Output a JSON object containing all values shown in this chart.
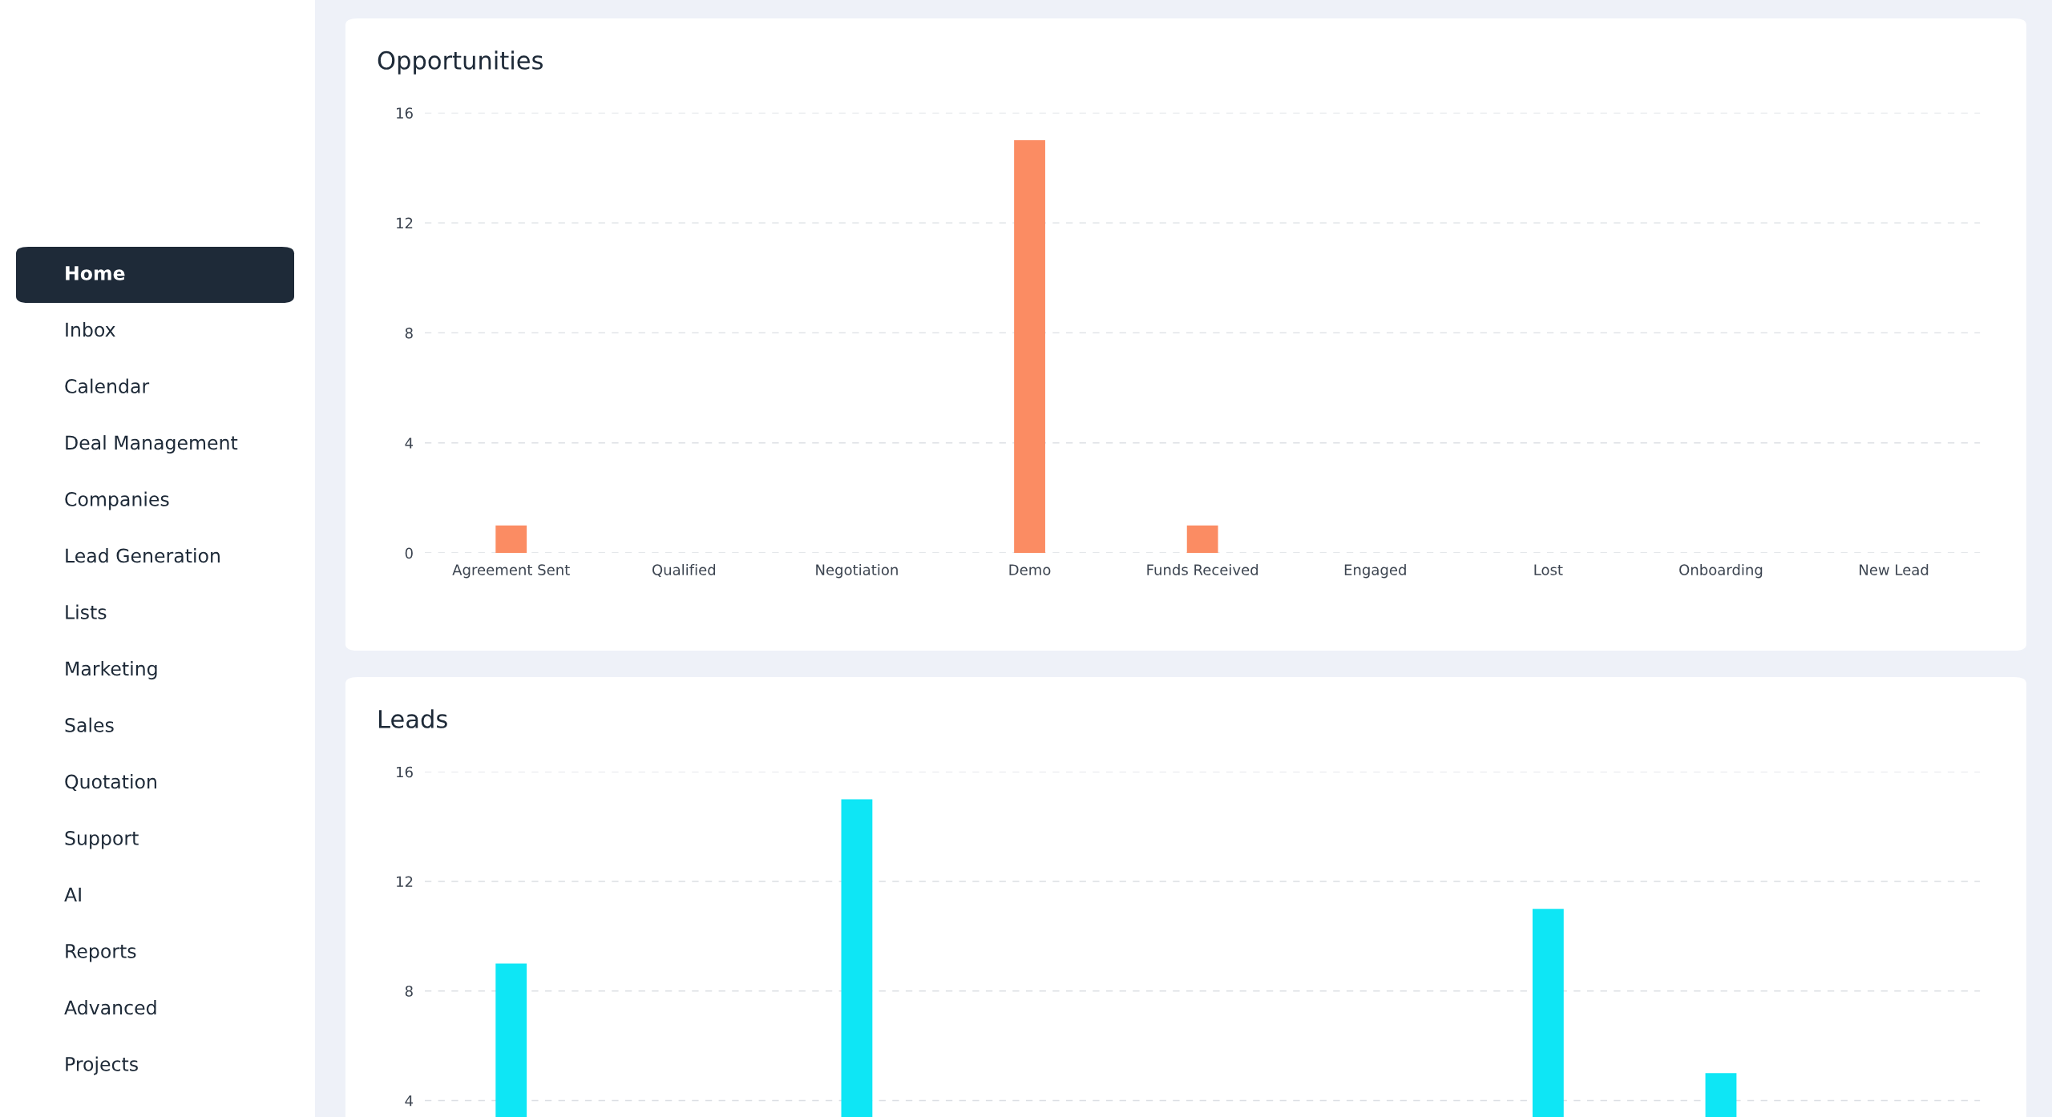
{
  "chart_data": [
    {
      "type": "other",
      "annotations": [
        "Home",
        "Inbox",
        "Calendar",
        "Deal Management",
        "Companies",
        "Lead Generation",
        "Lists",
        "Marketing",
        "Sales",
        "Quotation",
        "Support",
        "AI",
        "Reports",
        "Advanced",
        "Projects"
      ]
    },
    {
      "type": "bar",
      "title": "Opportunities",
      "categories": [
        "Agreement Sent",
        "Qualified",
        "Negotiation",
        "Demo",
        "Funds Received",
        "Engaged",
        "Lost",
        "Onboarding",
        "New Lead"
      ],
      "values": [
        1,
        0,
        0,
        15,
        1,
        0,
        0,
        0,
        0
      ],
      "color": "#fb8c63",
      "ylim": [
        0,
        16
      ],
      "yticks": [
        0,
        4,
        8,
        12,
        16
      ],
      "grid": "y"
    },
    {
      "type": "bar",
      "title": "Leads",
      "categories": [
        null,
        null,
        null,
        null,
        null,
        null,
        null,
        null,
        null
      ],
      "values": [
        9,
        null,
        15,
        null,
        null,
        null,
        11,
        5,
        null
      ],
      "color": "#0ee6f5",
      "ylim": [
        3.4,
        16
      ],
      "yticks": [
        4,
        8,
        12,
        16
      ],
      "grid": "y"
    }
  ]
}
